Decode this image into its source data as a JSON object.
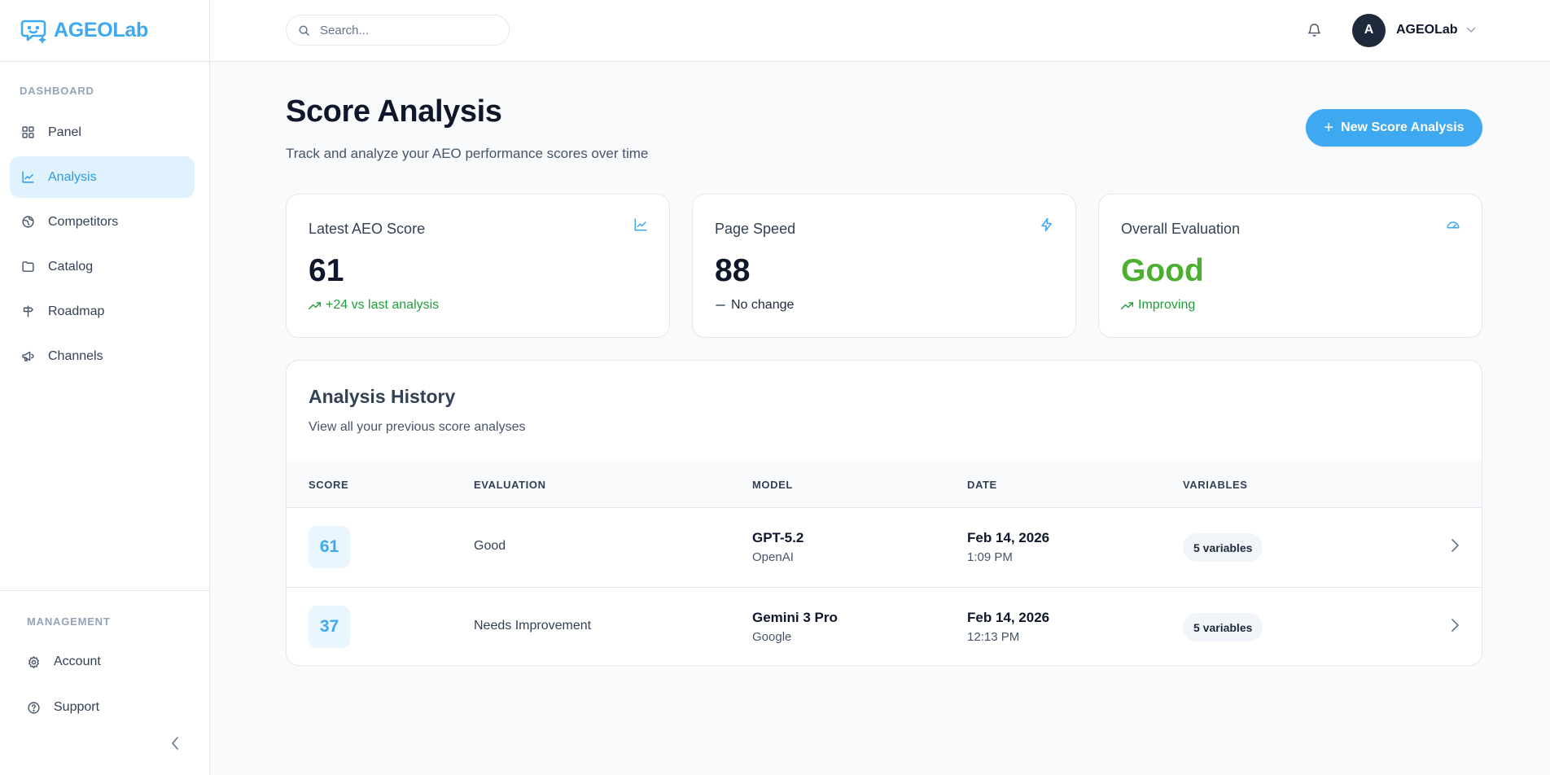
{
  "brand": {
    "name": "AGEOLab"
  },
  "sidebar": {
    "section_dashboard": "DASHBOARD",
    "items": [
      {
        "label": "Panel",
        "icon": "grid-icon",
        "active": false
      },
      {
        "label": "Analysis",
        "icon": "line-chart-icon",
        "active": true
      },
      {
        "label": "Competitors",
        "icon": "globe-icon",
        "active": false
      },
      {
        "label": "Catalog",
        "icon": "folder-icon",
        "active": false
      },
      {
        "label": "Roadmap",
        "icon": "signpost-icon",
        "active": false
      },
      {
        "label": "Channels",
        "icon": "megaphone-icon",
        "active": false
      }
    ],
    "section_management": "MANAGEMENT",
    "management_items": [
      {
        "label": "Account",
        "icon": "gear-icon"
      },
      {
        "label": "Support",
        "icon": "help-circle-icon"
      }
    ]
  },
  "topbar": {
    "search_placeholder": "Search...",
    "user_initial": "A",
    "user_name": "AGEOLab"
  },
  "page": {
    "title": "Score Analysis",
    "subtitle": "Track and analyze your AEO performance scores over time",
    "new_button_label": "New Score Analysis"
  },
  "cards": [
    {
      "title": "Latest AEO Score",
      "value": "61",
      "trend": "+24 vs last analysis",
      "trend_type": "up",
      "icon": "line-chart-icon"
    },
    {
      "title": "Page Speed",
      "value": "88",
      "trend": "No change",
      "trend_type": "flat",
      "icon": "lightning-icon"
    },
    {
      "title": "Overall Evaluation",
      "value": "Good",
      "trend": "Improving",
      "trend_type": "up",
      "icon": "gauge-icon"
    }
  ],
  "history": {
    "title": "Analysis History",
    "subtitle": "View all your previous score analyses",
    "columns": [
      "SCORE",
      "EVALUATION",
      "MODEL",
      "DATE",
      "VARIABLES"
    ],
    "rows": [
      {
        "score": "61",
        "evaluation": "Good",
        "model": "GPT-5.2",
        "provider": "OpenAI",
        "date": "Feb 14, 2026",
        "time": "1:09 PM",
        "variables": "5 variables"
      },
      {
        "score": "37",
        "evaluation": "Needs Improvement",
        "model": "Gemini 3 Pro",
        "provider": "Google",
        "date": "Feb 14, 2026",
        "time": "12:13 PM",
        "variables": "5 variables"
      }
    ]
  },
  "colors": {
    "accent": "#3ea8f0",
    "good": "#4caf2f",
    "trend_up": "#1f9d38"
  }
}
